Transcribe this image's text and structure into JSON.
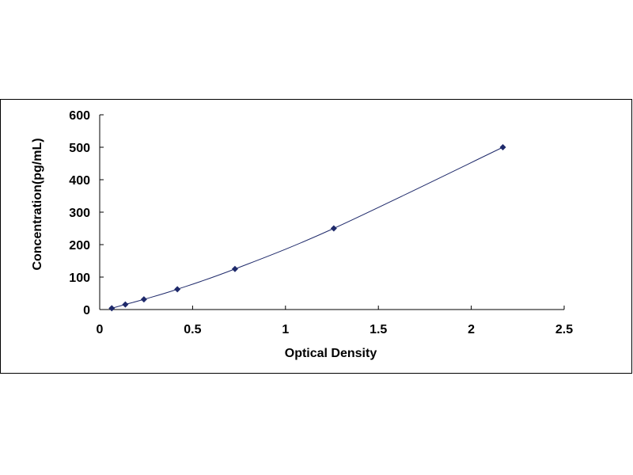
{
  "chart_data": {
    "type": "scatter",
    "title": "",
    "xlabel": "Optical Density",
    "ylabel": "Concentration(pg/mL)",
    "xlim": [
      0,
      2.5
    ],
    "ylim": [
      0,
      600
    ],
    "x_ticks": [
      "0",
      "0.5",
      "1",
      "1.5",
      "2",
      "2.5"
    ],
    "y_ticks": [
      "0",
      "100",
      "200",
      "300",
      "400",
      "500",
      "600"
    ],
    "grid": false,
    "legend": "none",
    "trendline": "smooth curve",
    "series": [
      {
        "x": [
          0.065,
          0.138,
          0.238,
          0.418,
          0.728,
          1.26,
          2.17
        ],
        "y": [
          3.9,
          15.6,
          31.3,
          62.5,
          125,
          250,
          500
        ],
        "marker": "diamond",
        "color": "#1f2a6b"
      }
    ],
    "line_color": "#1f2a6b",
    "axis_color": "#000000"
  }
}
